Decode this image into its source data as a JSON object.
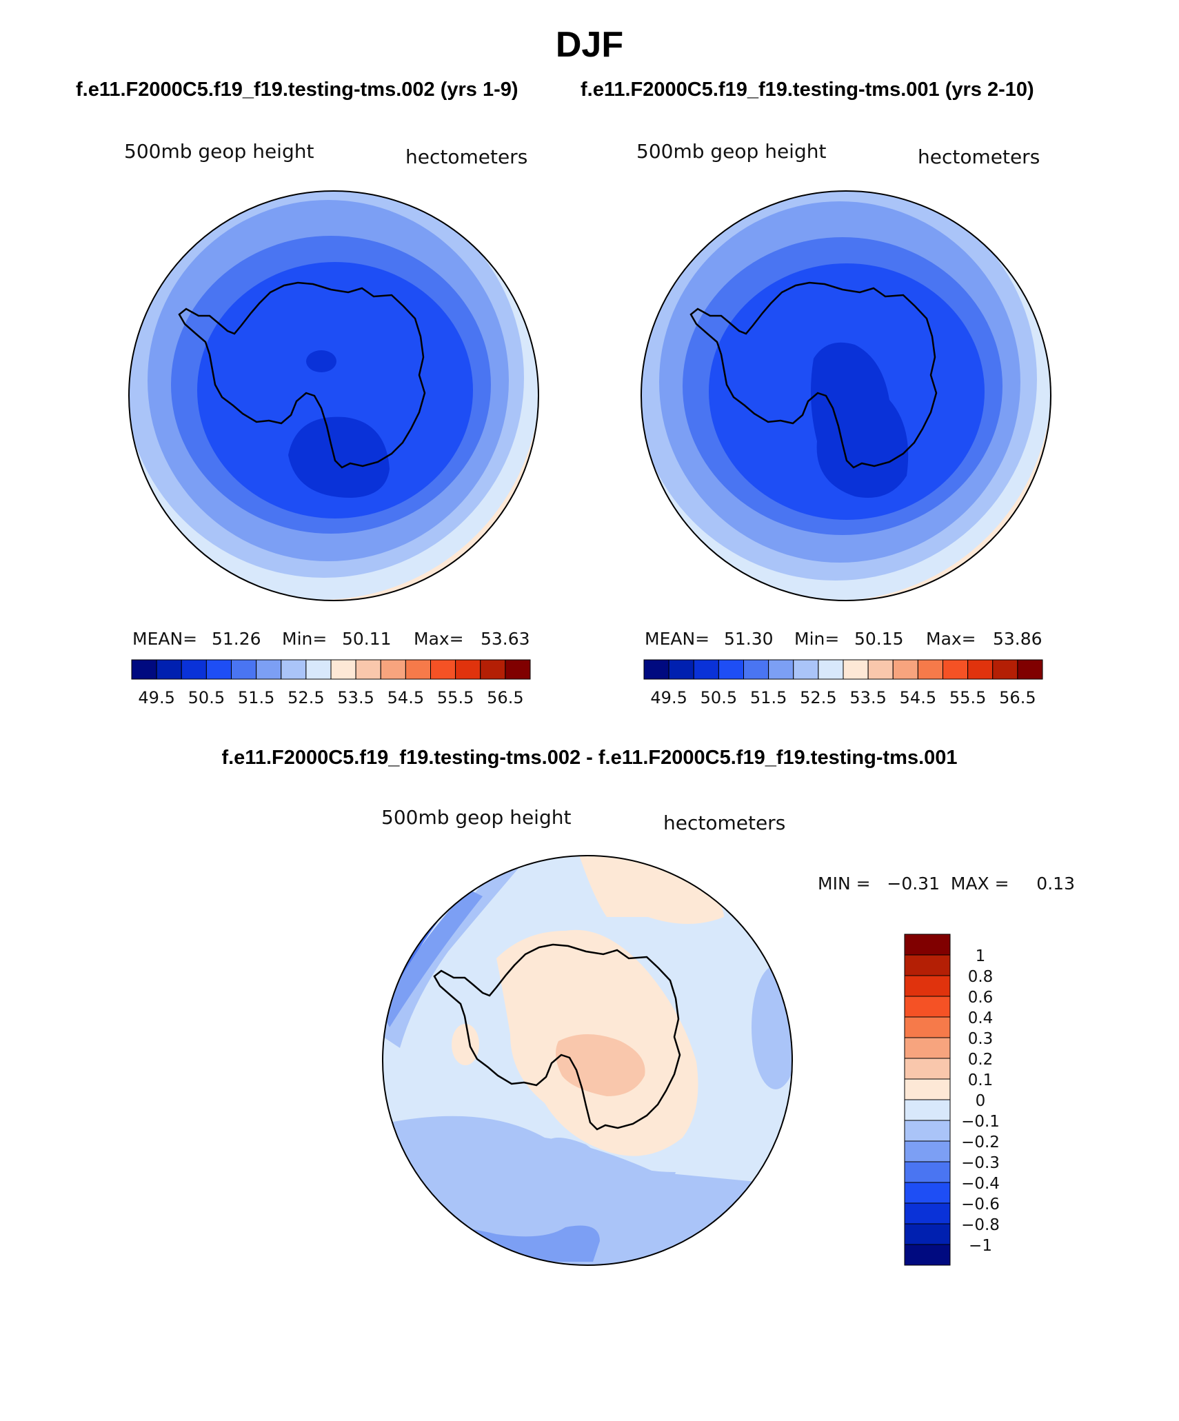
{
  "page": {
    "title": "DJF",
    "subtitle_left": "f.e11.F2000C5.f19_f19.testing-tms.002 (yrs 1-9)",
    "subtitle_right": "f.e11.F2000C5.f19_f19.testing-tms.001 (yrs 2-10)",
    "diff_title": "f.e11.F2000C5.f19_f19.testing-tms.002 - f.e11.F2000C5.f19_f19.testing-tms.001"
  },
  "colors": {
    "blue_red_16": [
      "#000a80",
      "#0020b0",
      "#0a32d8",
      "#1e4ef5",
      "#4a75f2",
      "#7c9ff4",
      "#aac4f8",
      "#d8e8fb",
      "#fde8d6",
      "#f9c7ac",
      "#f7a47e",
      "#f67a4a",
      "#f55225",
      "#e0330d",
      "#b41f05",
      "#800000"
    ],
    "coast": "#000000"
  },
  "panels": {
    "left": {
      "label_left": "500mb  geop  height",
      "label_right": "hectometers",
      "stats": {
        "mean_label": "MEAN=",
        "mean": "51.26",
        "min_label": "Min=",
        "min": "50.11",
        "max_label": "Max=",
        "max": "53.63"
      },
      "colorbar_ticks": [
        "49.5",
        "50.5",
        "51.5",
        "52.5",
        "53.5",
        "54.5",
        "55.5",
        "56.5"
      ]
    },
    "right": {
      "label_left": "500mb  geop  height",
      "label_right": "hectometers",
      "stats": {
        "mean_label": "MEAN=",
        "mean": "51.30",
        "min_label": "Min=",
        "min": "50.15",
        "max_label": "Max=",
        "max": "53.86"
      },
      "colorbar_ticks": [
        "49.5",
        "50.5",
        "51.5",
        "52.5",
        "53.5",
        "54.5",
        "55.5",
        "56.5"
      ]
    },
    "diff": {
      "label_left": "500mb  geop  height",
      "label_right": "hectometers",
      "minmax": "MIN =   −0.31  MAX =     0.13",
      "colorbar_labels": [
        "1",
        "0.8",
        "0.6",
        "0.4",
        "0.3",
        "0.2",
        "0.1",
        "0",
        "−0.1",
        "−0.2",
        "−0.3",
        "−0.4",
        "−0.6",
        "−0.8",
        "−1"
      ]
    }
  }
}
